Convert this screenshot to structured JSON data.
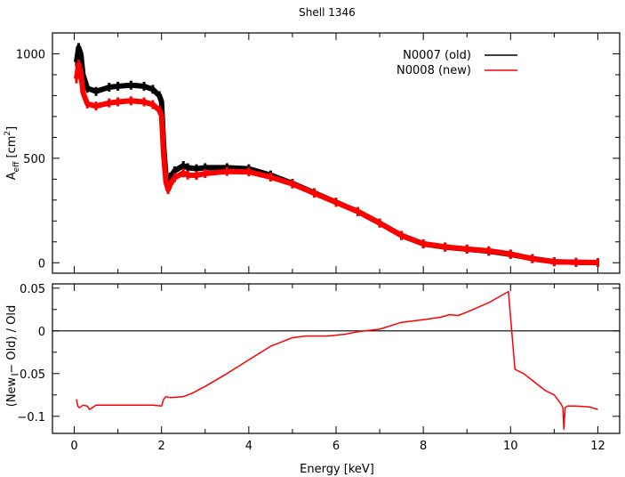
{
  "chart_data": [
    {
      "type": "line",
      "title": "Shell 1346",
      "ylabel": "A_eff [cm^2]",
      "ylabel_main": "A",
      "ylabel_sub": "eff",
      "ylabel_rest": "[cm",
      "ylabel_sup": "2",
      "ylabel_close": "]",
      "xlim": [
        -0.5,
        12.5
      ],
      "ylim": [
        -50,
        1100
      ],
      "yticks": [
        "0",
        "500",
        "1000"
      ],
      "ytick_values": [
        0,
        500,
        1000
      ],
      "legend_position": "top-right",
      "x": [
        0.05,
        0.1,
        0.15,
        0.2,
        0.3,
        0.5,
        0.8,
        1.0,
        1.3,
        1.6,
        1.8,
        1.95,
        2.0,
        2.05,
        2.1,
        2.15,
        2.2,
        2.3,
        2.5,
        2.6,
        2.8,
        3.0,
        3.5,
        4.0,
        4.5,
        5.0,
        5.5,
        6.0,
        6.5,
        7.0,
        7.5,
        8.0,
        8.5,
        9.0,
        9.5,
        10.0,
        10.5,
        11.0,
        11.5,
        12.0
      ],
      "series": [
        {
          "name": "N0007 (old)",
          "color": "#000000",
          "values": [
            960,
            1030,
            1000,
            900,
            835,
            820,
            840,
            845,
            850,
            845,
            830,
            800,
            770,
            560,
            420,
            400,
            410,
            440,
            465,
            455,
            450,
            455,
            455,
            450,
            420,
            380,
            335,
            290,
            245,
            190,
            130,
            90,
            75,
            65,
            55,
            40,
            20,
            5,
            2,
            1
          ]
        },
        {
          "name": "N0008 (new)",
          "color": "#ff0000",
          "values": [
            880,
            950,
            910,
            815,
            760,
            750,
            765,
            770,
            775,
            770,
            757,
            730,
            705,
            515,
            388,
            350,
            375,
            407,
            430,
            420,
            418,
            427,
            437,
            435,
            410,
            377,
            333,
            289,
            245,
            190,
            131,
            91,
            76,
            66,
            57,
            42,
            19,
            5,
            2,
            1
          ]
        }
      ]
    },
    {
      "type": "line",
      "xlabel": "Energy [keV]",
      "ylabel": "(New − Old) / Old",
      "xlim": [
        -0.5,
        12.5
      ],
      "ylim": [
        -0.12,
        0.055
      ],
      "xticks": [
        "0",
        "2",
        "4",
        "6",
        "8",
        "10",
        "12"
      ],
      "xtick_values": [
        0,
        2,
        4,
        6,
        8,
        10,
        12
      ],
      "yticks": [
        "0.05",
        "0",
        "−0.05",
        "−0.1"
      ],
      "ytick_values": [
        0.05,
        0,
        -0.05,
        -0.1
      ],
      "reference_line": 0,
      "series": [
        {
          "color": "#ff0000",
          "x": [
            0.05,
            0.08,
            0.12,
            0.2,
            0.3,
            0.35,
            0.5,
            1.0,
            1.5,
            1.8,
            2.0,
            2.05,
            2.1,
            2.2,
            2.5,
            2.7,
            3.0,
            3.5,
            4.0,
            4.5,
            5.0,
            5.3,
            5.8,
            6.2,
            6.5,
            7.0,
            7.5,
            8.0,
            8.4,
            8.6,
            8.8,
            9.0,
            9.5,
            9.95,
            10.1,
            10.3,
            10.5,
            10.8,
            11.0,
            11.15,
            11.2,
            11.22,
            11.25,
            11.3,
            11.5,
            11.8,
            12.0
          ],
          "values": [
            -0.08,
            -0.088,
            -0.09,
            -0.087,
            -0.088,
            -0.092,
            -0.087,
            -0.087,
            -0.087,
            -0.087,
            -0.088,
            -0.08,
            -0.077,
            -0.078,
            -0.077,
            -0.073,
            -0.065,
            -0.05,
            -0.034,
            -0.018,
            -0.008,
            -0.006,
            -0.006,
            -0.004,
            -0.001,
            0.002,
            0.01,
            0.013,
            0.016,
            0.019,
            0.018,
            0.022,
            0.033,
            0.046,
            -0.045,
            -0.05,
            -0.058,
            -0.07,
            -0.075,
            -0.085,
            -0.09,
            -0.115,
            -0.09,
            -0.088,
            -0.088,
            -0.089,
            -0.092
          ]
        }
      ]
    }
  ]
}
